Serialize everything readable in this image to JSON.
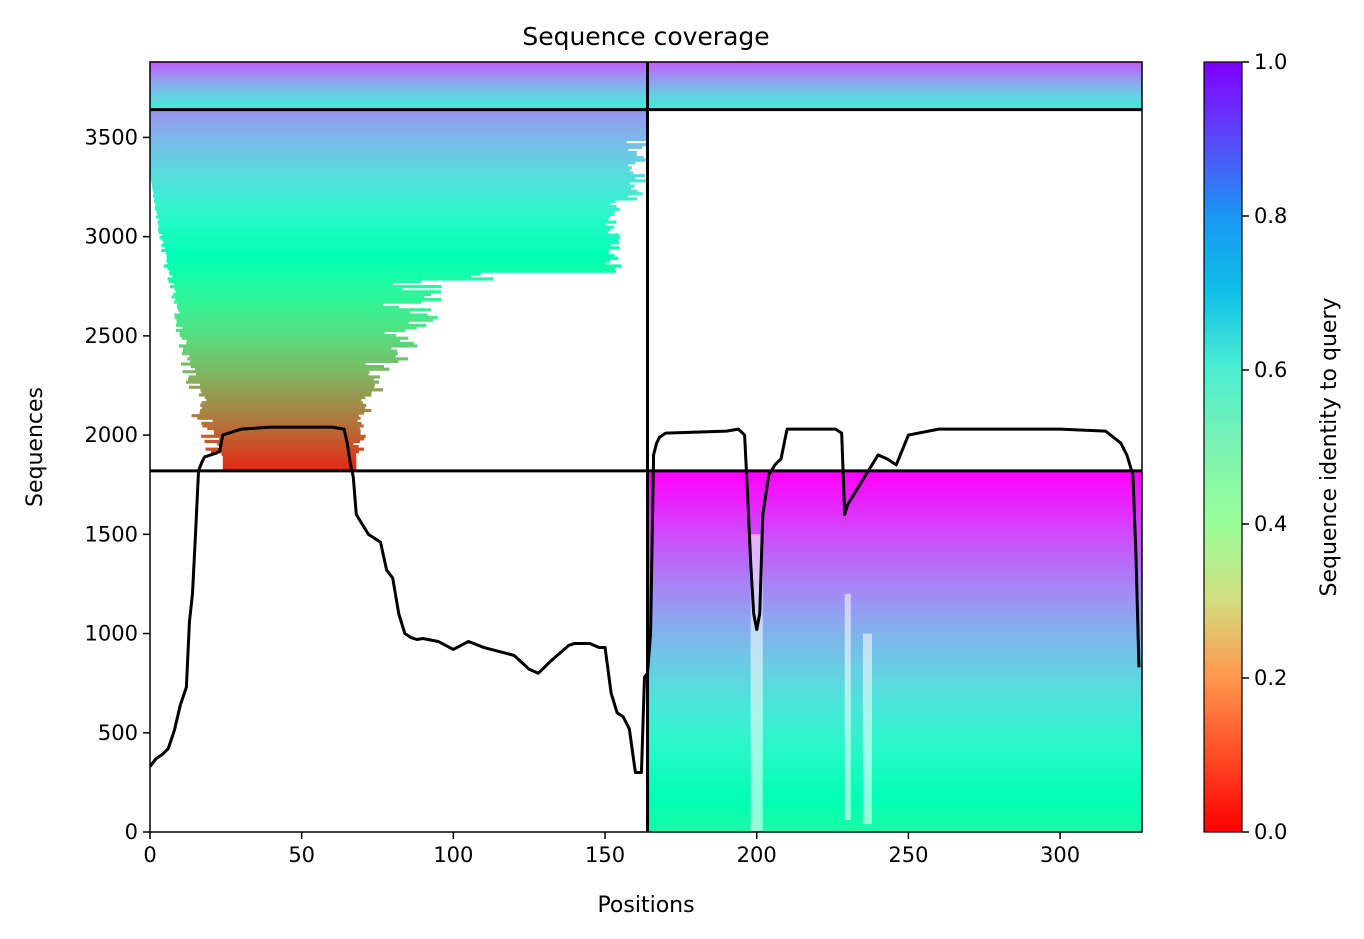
{
  "chart_data": {
    "type": "heatmap",
    "title": "Sequence coverage",
    "xlabel": "Positions",
    "ylabel": "Sequences",
    "colorbar_label": "Sequence identity to query",
    "xlim": [
      0,
      327
    ],
    "ylim": [
      0,
      3880
    ],
    "x_ticks": [
      {
        "value": 0,
        "label": "0"
      },
      {
        "value": 50,
        "label": "50"
      },
      {
        "value": 100,
        "label": "100"
      },
      {
        "value": 150,
        "label": "150"
      },
      {
        "value": 200,
        "label": "200"
      },
      {
        "value": 250,
        "label": "250"
      },
      {
        "value": 300,
        "label": "300"
      }
    ],
    "y_ticks": [
      {
        "value": 0,
        "label": "0"
      },
      {
        "value": 500,
        "label": "500"
      },
      {
        "value": 1000,
        "label": "1000"
      },
      {
        "value": 1500,
        "label": "1500"
      },
      {
        "value": 2000,
        "label": "2000"
      },
      {
        "value": 2500,
        "label": "2500"
      },
      {
        "value": 3000,
        "label": "3000"
      },
      {
        "value": 3500,
        "label": "3500"
      }
    ],
    "colorbar_ticks": [
      {
        "value": 0.0,
        "label": "0.0"
      },
      {
        "value": 0.2,
        "label": "0.2"
      },
      {
        "value": 0.4,
        "label": "0.4"
      },
      {
        "value": 0.6,
        "label": "0.6"
      },
      {
        "value": 0.8,
        "label": "0.8"
      },
      {
        "value": 1.0,
        "label": "1.0"
      }
    ],
    "colorbar_range": [
      0,
      1
    ],
    "colormap": "rainbow_r",
    "grid": false,
    "boundaries": {
      "vertical_x": 164,
      "horizontal_y": [
        1820,
        3640
      ]
    },
    "blocks": [
      {
        "name": "paired-top-left",
        "x_range": [
          0,
          164
        ],
        "y_range": [
          3640,
          3880
        ],
        "identity_top": 0.88,
        "identity_bottom": 0.62,
        "coverage": "full"
      },
      {
        "name": "paired-top-right",
        "x_range": [
          164,
          327
        ],
        "y_range": [
          3640,
          3880
        ],
        "identity_top": 0.88,
        "identity_bottom": 0.62,
        "coverage": "full"
      },
      {
        "name": "unpaired-chain-a",
        "x_range": [
          0,
          164
        ],
        "y_range": [
          1820,
          3640
        ],
        "identity_top": 0.8,
        "identity_bottom": 0.05,
        "coverage": "ragged"
      },
      {
        "name": "unpaired-chain-b",
        "x_range": [
          164,
          327
        ],
        "y_range": [
          0,
          1820
        ],
        "identity_top": 1.0,
        "identity_bottom": 0.45,
        "coverage": "full"
      }
    ],
    "coverage_line": {
      "x": [
        0,
        2,
        4,
        6,
        8,
        10,
        12,
        13,
        14,
        15,
        16,
        17,
        18,
        20,
        22,
        23,
        24,
        26,
        28,
        30,
        40,
        50,
        60,
        64,
        65,
        66,
        67,
        68,
        70,
        72,
        74,
        76,
        78,
        80,
        82,
        84,
        86,
        88,
        90,
        95,
        100,
        105,
        110,
        115,
        120,
        125,
        128,
        130,
        132,
        135,
        138,
        140,
        145,
        148,
        150,
        152,
        154,
        156,
        158,
        160,
        162,
        163,
        164,
        165,
        166,
        167,
        168,
        170,
        180,
        190,
        194,
        196,
        197,
        198,
        199,
        200,
        201,
        202,
        203,
        204,
        206,
        208,
        210,
        220,
        226,
        228,
        229,
        230,
        232,
        234,
        236,
        240,
        243,
        246,
        250,
        260,
        280,
        300,
        315,
        320,
        322,
        324,
        325,
        326
      ],
      "y": [
        330,
        370,
        390,
        420,
        510,
        640,
        730,
        1060,
        1200,
        1500,
        1820,
        1860,
        1890,
        1900,
        1910,
        1920,
        2000,
        2010,
        2020,
        2030,
        2040,
        2040,
        2040,
        2030,
        1960,
        1860,
        1790,
        1600,
        1550,
        1500,
        1480,
        1460,
        1320,
        1280,
        1100,
        1000,
        980,
        970,
        975,
        960,
        920,
        960,
        930,
        910,
        890,
        820,
        800,
        830,
        860,
        900,
        940,
        950,
        950,
        930,
        930,
        700,
        600,
        580,
        520,
        300,
        300,
        780,
        800,
        1000,
        1900,
        1960,
        1990,
        2010,
        2015,
        2020,
        2030,
        2000,
        1700,
        1360,
        1100,
        1020,
        1100,
        1600,
        1700,
        1800,
        1850,
        1880,
        2030,
        2030,
        2030,
        2010,
        1600,
        1650,
        1700,
        1750,
        1800,
        1900,
        1880,
        1850,
        2000,
        2030,
        2030,
        2030,
        2020,
        1960,
        1900,
        1800,
        1400,
        830
      ]
    }
  }
}
